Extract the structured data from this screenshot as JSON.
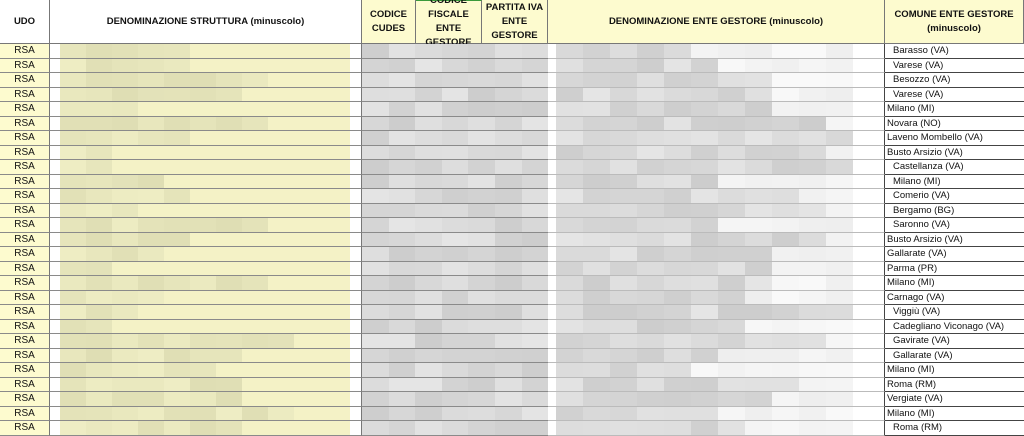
{
  "headers": {
    "udo": "UDO",
    "denominazione_struttura": "DENOMINAZIONE STRUTTURA (minuscolo)",
    "codice_cudes": "CODICE CUDES",
    "codice_fiscale": "CODICE FISCALE ENTE GESTORE",
    "partita_iva": "PARTITA IVA ENTE GESTORE",
    "denominazione_ente": "DENOMINAZIONE ENTE GESTORE (minuscolo)",
    "comune_ente": "COMUNE ENTE GESTORE (minuscolo)"
  },
  "colors": {
    "header_yellow": "#fdfbcf",
    "struttura_fill": "#f4f2c6",
    "redacted_gray": "#d9d9d9"
  },
  "rows": [
    {
      "udo": "RSA",
      "comune": "Barasso (VA)",
      "indent": true
    },
    {
      "udo": "RSA",
      "comune": "Varese (VA)",
      "indent": true
    },
    {
      "udo": "RSA",
      "comune": "Besozzo (VA)",
      "indent": true
    },
    {
      "udo": "RSA",
      "comune": "Varese (VA)",
      "indent": true
    },
    {
      "udo": "RSA",
      "comune": "Milano (MI)",
      "indent": false
    },
    {
      "udo": "RSA",
      "comune": "Novara (NO)",
      "indent": false
    },
    {
      "udo": "RSA",
      "comune": "Laveno Mombello (VA)",
      "indent": false
    },
    {
      "udo": "RSA",
      "comune": "Busto Arsizio (VA)",
      "indent": false
    },
    {
      "udo": "RSA",
      "comune": "Castellanza (VA)",
      "indent": true
    },
    {
      "udo": "RSA",
      "comune": "Milano (MI)",
      "indent": true
    },
    {
      "udo": "RSA",
      "comune": "Comerio (VA)",
      "indent": true
    },
    {
      "udo": "RSA",
      "comune": "Bergamo (BG)",
      "indent": true
    },
    {
      "udo": "RSA",
      "comune": "Saronno (VA)",
      "indent": true
    },
    {
      "udo": "RSA",
      "comune": "Busto Arsizio (VA)",
      "indent": false
    },
    {
      "udo": "RSA",
      "comune": "Gallarate (VA)",
      "indent": false
    },
    {
      "udo": "RSA",
      "comune": "Parma (PR)",
      "indent": false
    },
    {
      "udo": "RSA",
      "comune": "Milano (MI)",
      "indent": false
    },
    {
      "udo": "RSA",
      "comune": "Carnago (VA)",
      "indent": false
    },
    {
      "udo": "RSA",
      "comune": "Viggiù (VA)",
      "indent": true
    },
    {
      "udo": "RSA",
      "comune": "Cadegliano Viconago (VA)",
      "indent": true
    },
    {
      "udo": "RSA",
      "comune": "Gavirate (VA)",
      "indent": true
    },
    {
      "udo": "RSA",
      "comune": "Gallarate (VA)",
      "indent": true
    },
    {
      "udo": "RSA",
      "comune": "Milano (MI)",
      "indent": false
    },
    {
      "udo": "RSA",
      "comune": "Roma (RM)",
      "indent": false
    },
    {
      "udo": "RSA",
      "comune": "Vergiate (VA)",
      "indent": false
    },
    {
      "udo": "RSA",
      "comune": "Milano (MI)",
      "indent": false
    },
    {
      "udo": "RSA",
      "comune": "Roma (RM)",
      "indent": true
    }
  ]
}
